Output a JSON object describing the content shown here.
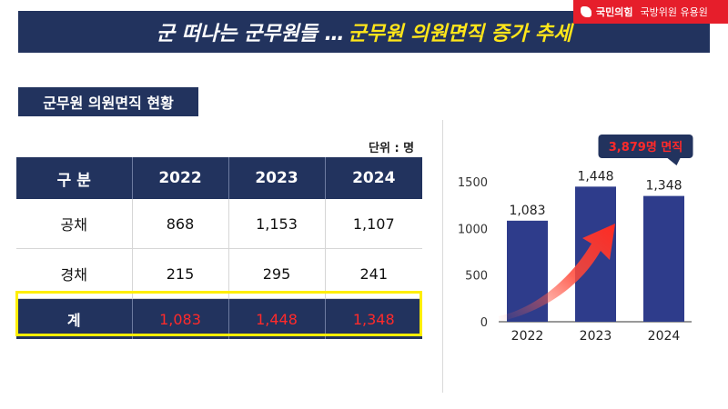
{
  "header": {
    "title_white": "군 떠나는 군무원들 …",
    "title_yellow": "군무원 의원면직 증가 추세"
  },
  "badge": {
    "party": "국민의힘",
    "member": "국방위원 유용원"
  },
  "section": {
    "label": "군무원 의원면직 현황"
  },
  "table": {
    "unit": "단위 : 명",
    "headers": [
      "구 분",
      "2022",
      "2023",
      "2024"
    ],
    "rows": [
      [
        "공채",
        "868",
        "1,153",
        "1,107"
      ],
      [
        "경채",
        "215",
        "295",
        "241"
      ]
    ],
    "total": [
      "계",
      "1,083",
      "1,448",
      "1,348"
    ]
  },
  "colors": {
    "navy": "#22335e",
    "bar": "#2e3c8b",
    "highlight": "#ffee00",
    "red": "#ff2a2a",
    "accent": "#e61e2b"
  },
  "chart_data": {
    "type": "bar",
    "categories": [
      "2022",
      "2023",
      "2024"
    ],
    "values": [
      1083,
      1448,
      1348
    ],
    "value_labels": [
      "1,083",
      "1,448",
      "1,348"
    ],
    "yticks": [
      0,
      500,
      1000,
      1500
    ],
    "ylim": [
      0,
      1500
    ],
    "grid": false,
    "callout": "3,879명 면직",
    "trend_arrow": true
  }
}
